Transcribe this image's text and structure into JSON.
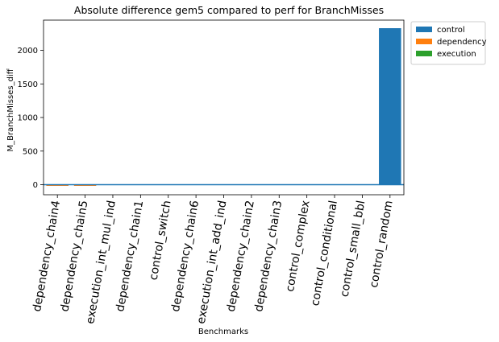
{
  "chart_data": {
    "type": "bar",
    "title": "Absolute difference gem5 compared to perf for BranchMisses",
    "xlabel": "Benchmarks",
    "ylabel": "M_BranchMisses_diff",
    "ylim": [
      -150,
      2450
    ],
    "yticks": [
      0,
      500,
      1000,
      1500,
      2000
    ],
    "grid": false,
    "legend_position": "outside-top-right",
    "hline_y": 0,
    "categories": [
      "dependency_chain4",
      "dependency_chain5",
      "execution_int_mul_ind",
      "dependency_chain1",
      "control_switch",
      "dependency_chain6",
      "execution_int_add_ind",
      "dependency_chain2",
      "dependency_chain3",
      "control_complex",
      "control_conditional",
      "control_small_bbl",
      "control_random"
    ],
    "series": [
      {
        "name": "control",
        "color": "#1f77b4",
        "values": [
          0,
          0,
          0,
          0,
          0,
          0,
          0,
          0,
          0,
          0,
          0,
          0,
          2330
        ]
      },
      {
        "name": "dependency",
        "color": "#ff7f0e",
        "values": [
          -18,
          -18,
          0,
          0,
          0,
          0,
          0,
          0,
          0,
          0,
          0,
          0,
          0
        ]
      },
      {
        "name": "execution",
        "color": "#2ca02c",
        "values": [
          0,
          0,
          0,
          0,
          0,
          0,
          0,
          0,
          0,
          0,
          0,
          0,
          0
        ]
      }
    ]
  }
}
